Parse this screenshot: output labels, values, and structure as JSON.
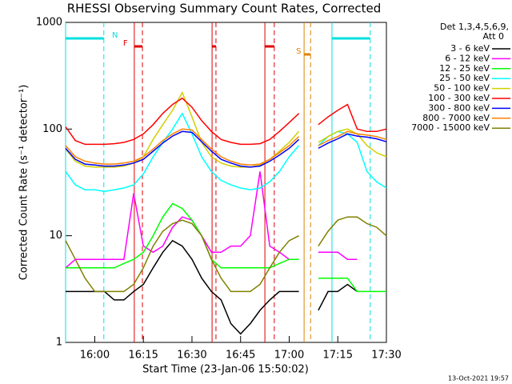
{
  "chart_data": {
    "type": "line",
    "title": "RHESSI Observing Summary Count Rates, Corrected",
    "ylabel": "Corrected Count Rate (s⁻¹ detector⁻¹)",
    "xlabel": "Start Time (23-Jan-06 15:50:02)",
    "legend_header": [
      "Det 1,3,4,5,6,9,",
      "Att 0"
    ],
    "footer": "13-Oct-2021 19:57",
    "log_y": true,
    "xlim": [
      951,
      1050
    ],
    "ylim": [
      1,
      1000
    ],
    "xticks": [
      {
        "value": 960,
        "label": "16:00"
      },
      {
        "value": 975,
        "label": "16:15"
      },
      {
        "value": 990,
        "label": "16:30"
      },
      {
        "value": 1005,
        "label": "16:45"
      },
      {
        "value": 1020,
        "label": "17:00"
      },
      {
        "value": 1035,
        "label": "17:15"
      },
      {
        "value": 1050,
        "label": "17:30"
      }
    ],
    "yticks": [
      1,
      10,
      100,
      1000
    ],
    "flags": [
      {
        "label": "N",
        "color": "#00e0e0",
        "intervals": [
          [
            951,
            962.8
          ],
          [
            1033.2,
            1045
          ]
        ]
      },
      {
        "label": "F",
        "color": "#e00000",
        "intervals": [
          [
            972.2,
            974.7
          ],
          [
            996.2,
            997.4
          ],
          [
            1012.5,
            1015.4
          ]
        ]
      },
      {
        "label": "S",
        "color": "#e08000",
        "intervals": [
          [
            1024.6,
            1026.6
          ]
        ]
      }
    ],
    "x": [
      951,
      954,
      957,
      960,
      963,
      966,
      969,
      972,
      975,
      978,
      981,
      984,
      987,
      990,
      993,
      996,
      999,
      1002,
      1005,
      1008,
      1011,
      1014,
      1017,
      1020,
      1023,
      1026,
      1029,
      1032,
      1035,
      1038,
      1041,
      1044,
      1047,
      1050
    ],
    "series": [
      {
        "name": "3 - 6 keV",
        "color": "#000000",
        "values": [
          3,
          3,
          3,
          3,
          3,
          2.5,
          2.5,
          3,
          3.5,
          5,
          7,
          9,
          8,
          6,
          4,
          3,
          2.5,
          1.5,
          1.2,
          1.5,
          2,
          2.5,
          3,
          3,
          3,
          null,
          2,
          3,
          3,
          3.5,
          3,
          null,
          null,
          null
        ]
      },
      {
        "name": "6 - 12 keV",
        "color": "#ff00ff",
        "values": [
          5,
          6,
          6,
          6,
          6,
          6,
          6,
          25,
          8,
          7,
          8,
          12,
          15,
          14,
          10,
          7,
          7,
          8,
          8,
          10,
          40,
          8,
          7,
          6,
          6,
          null,
          7,
          7,
          7,
          6,
          6,
          null,
          null,
          null
        ]
      },
      {
        "name": "12 - 25 keV",
        "color": "#00ff00",
        "values": [
          5,
          5,
          5,
          5,
          5,
          5,
          5.5,
          6,
          7,
          10,
          15,
          20,
          18,
          14,
          10,
          6,
          5,
          5,
          5,
          5,
          5,
          5,
          5.5,
          6,
          6,
          null,
          4,
          4,
          4,
          4,
          3,
          3,
          3,
          3
        ]
      },
      {
        "name": "25 - 50 keV",
        "color": "#00ffff",
        "values": [
          40,
          30,
          27,
          27,
          26,
          27,
          28,
          30,
          38,
          55,
          75,
          100,
          140,
          90,
          55,
          40,
          33,
          30,
          28,
          27,
          28,
          32,
          40,
          55,
          70,
          null,
          70,
          85,
          95,
          90,
          75,
          40,
          32,
          28
        ]
      },
      {
        "name": "50 - 100 keV",
        "color": "#d0d000",
        "values": [
          65,
          50,
          45,
          44,
          44,
          44,
          45,
          48,
          55,
          80,
          110,
          150,
          220,
          130,
          75,
          55,
          48,
          45,
          44,
          44,
          46,
          52,
          62,
          75,
          95,
          null,
          75,
          85,
          95,
          100,
          90,
          70,
          60,
          55
        ]
      },
      {
        "name": "100 - 300 keV",
        "color": "#ff0000",
        "values": [
          105,
          78,
          72,
          72,
          72,
          73,
          75,
          80,
          90,
          110,
          140,
          170,
          195,
          160,
          120,
          95,
          80,
          75,
          72,
          72,
          73,
          80,
          95,
          115,
          140,
          null,
          110,
          130,
          150,
          170,
          100,
          95,
          95,
          100
        ]
      },
      {
        "name": "300 - 800 keV",
        "color": "#0000ff",
        "values": [
          66,
          52,
          47,
          46,
          45,
          45,
          46,
          48,
          52,
          62,
          74,
          86,
          95,
          93,
          76,
          62,
          52,
          48,
          45,
          44,
          45,
          50,
          57,
          66,
          80,
          null,
          66,
          74,
          81,
          90,
          86,
          84,
          81,
          76
        ]
      },
      {
        "name": "800 - 7000 keV",
        "color": "#ff8000",
        "values": [
          70,
          55,
          50,
          48,
          47,
          47,
          48,
          50,
          55,
          65,
          78,
          90,
          100,
          98,
          80,
          65,
          55,
          50,
          47,
          46,
          47,
          52,
          60,
          70,
          85,
          null,
          70,
          78,
          85,
          95,
          90,
          88,
          85,
          80
        ]
      },
      {
        "name": "7000 - 15000 keV",
        "color": "#808000",
        "values": [
          9,
          6,
          4,
          3,
          3,
          3,
          3,
          3.5,
          5,
          8,
          11,
          13,
          14,
          13,
          10,
          6,
          4,
          3,
          3,
          3,
          3.5,
          5,
          7,
          9,
          10,
          null,
          8,
          11,
          14,
          15,
          15,
          13,
          12,
          10
        ]
      }
    ]
  }
}
